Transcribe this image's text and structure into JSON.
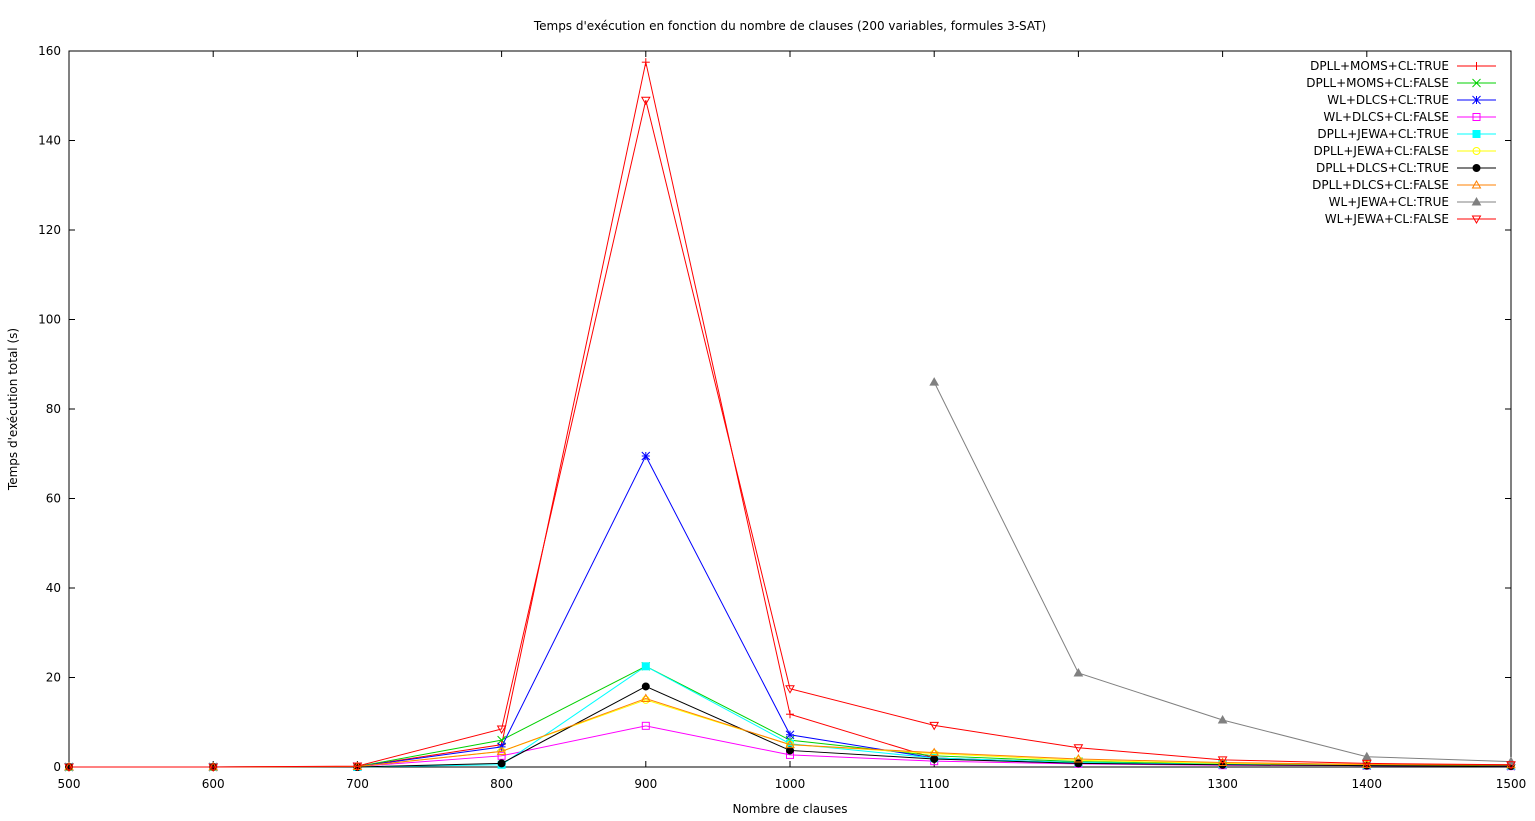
{
  "chart_data": {
    "type": "line",
    "title": "Temps d'exécution en fonction du nombre de clauses (200 variables, formules 3-SAT)",
    "xlabel": "Nombre de clauses",
    "ylabel": "Temps d'exécution total (s)",
    "xlim": [
      500,
      1500
    ],
    "ylim": [
      0,
      160
    ],
    "xticks": [
      500,
      600,
      700,
      800,
      900,
      1000,
      1100,
      1200,
      1300,
      1400,
      1500
    ],
    "yticks": [
      0,
      20,
      40,
      60,
      80,
      100,
      120,
      140,
      160
    ],
    "grid": false,
    "legend_position": "top-right",
    "series": [
      {
        "name": "DPLL+MOMS+CL:TRUE",
        "color": "#ff0000",
        "marker": "plus",
        "x": [
          500,
          600,
          700,
          800,
          900,
          1000,
          1100,
          1200,
          1300,
          1400,
          1500
        ],
        "y": [
          0.0,
          0.0,
          0.1,
          5.0,
          157.5,
          11.8,
          2.0,
          1.0,
          0.6,
          0.4,
          0.3
        ]
      },
      {
        "name": "DPLL+MOMS+CL:FALSE",
        "color": "#00d000",
        "marker": "cross",
        "x": [
          500,
          600,
          700,
          800,
          900,
          1000,
          1100,
          1200,
          1300,
          1400,
          1500
        ],
        "y": [
          0.0,
          0.0,
          0.1,
          6.0,
          22.5,
          6.0,
          2.5,
          1.2,
          0.7,
          0.4,
          0.3
        ]
      },
      {
        "name": "WL+DLCS+CL:TRUE",
        "color": "#0000ff",
        "marker": "star",
        "x": [
          500,
          600,
          700,
          800,
          900,
          1000,
          1100,
          1200,
          1300,
          1400,
          1500
        ],
        "y": [
          0.0,
          0.0,
          0.1,
          4.5,
          69.5,
          7.2,
          2.0,
          0.9,
          0.5,
          0.3,
          0.2
        ]
      },
      {
        "name": "WL+DLCS+CL:FALSE",
        "color": "#ff00ff",
        "marker": "square-open",
        "x": [
          500,
          600,
          700,
          800,
          900,
          1000,
          1100,
          1200,
          1300,
          1400,
          1500
        ],
        "y": [
          0.0,
          0.0,
          0.1,
          2.5,
          9.2,
          2.7,
          1.3,
          0.7,
          0.4,
          0.3,
          0.2
        ]
      },
      {
        "name": "DPLL+JEWA+CL:TRUE",
        "color": "#00ffff",
        "marker": "square-filled",
        "x": [
          500,
          600,
          700,
          800,
          900,
          1000,
          1100,
          1200,
          1300,
          1400,
          1500
        ],
        "y": [
          0.0,
          0.0,
          0.0,
          0.5,
          22.5,
          5.2,
          2.0,
          1.0,
          0.6,
          0.4,
          0.3
        ]
      },
      {
        "name": "DPLL+JEWA+CL:FALSE",
        "color": "#ffff00",
        "marker": "circle-open",
        "x": [
          500,
          600,
          700,
          800,
          900,
          1000,
          1100,
          1200,
          1300,
          1400,
          1500
        ],
        "y": [
          0.0,
          0.0,
          0.1,
          3.5,
          15.0,
          5.0,
          3.0,
          1.5,
          0.8,
          0.5,
          0.4
        ]
      },
      {
        "name": "DPLL+DLCS+CL:TRUE",
        "color": "#000000",
        "marker": "circle-filled",
        "x": [
          500,
          600,
          700,
          800,
          900,
          1000,
          1100,
          1200,
          1300,
          1400,
          1500
        ],
        "y": [
          0.0,
          0.0,
          0.0,
          0.8,
          18.0,
          3.7,
          1.8,
          0.8,
          0.5,
          0.3,
          0.2
        ]
      },
      {
        "name": "DPLL+DLCS+CL:FALSE",
        "color": "#ff8000",
        "marker": "triangle-open",
        "x": [
          500,
          600,
          700,
          800,
          900,
          1000,
          1100,
          1200,
          1300,
          1400,
          1500
        ],
        "y": [
          0.0,
          0.0,
          0.1,
          3.5,
          15.3,
          5.0,
          3.2,
          1.8,
          1.0,
          0.6,
          0.5
        ]
      },
      {
        "name": "WL+JEWA+CL:TRUE",
        "color": "#808080",
        "marker": "triangle-filled",
        "x": [
          1100,
          1200,
          1300,
          1400,
          1500
        ],
        "y": [
          86.0,
          21.0,
          10.5,
          2.3,
          1.2
        ]
      },
      {
        "name": "WL+JEWA+CL:FALSE",
        "color": "#ff0000",
        "marker": "triangle-down-open",
        "x": [
          500,
          600,
          700,
          800,
          900,
          1000,
          1100,
          1200,
          1300,
          1400,
          1500
        ],
        "y": [
          0.0,
          0.0,
          0.2,
          8.5,
          149.0,
          17.5,
          9.3,
          4.3,
          1.6,
          0.8,
          0.5
        ]
      }
    ]
  }
}
